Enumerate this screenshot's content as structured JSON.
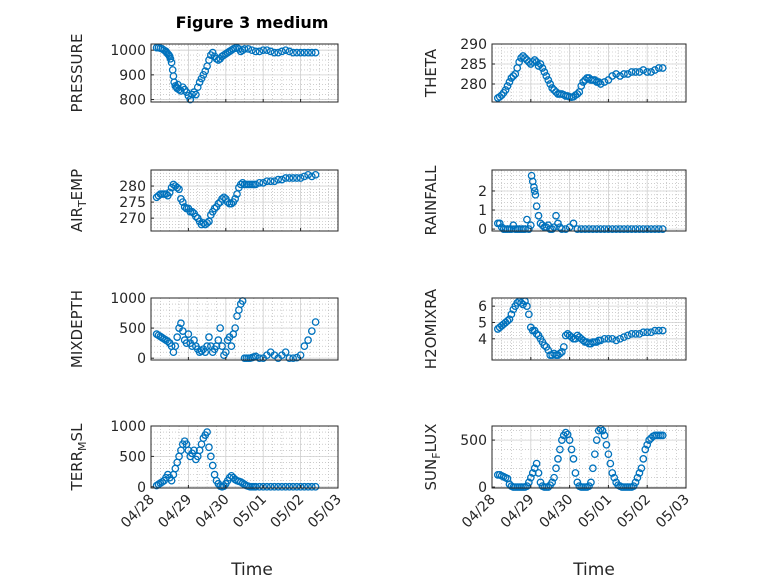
{
  "figure": {
    "title": "Figure 3 medium",
    "marker_color": "#0072BD",
    "axis_color": "#262626",
    "grid_color": "#b0b0b0"
  },
  "chart_data": [
    {
      "type": "scatter",
      "ylabel": "PRESSURE",
      "ylabel_sub": "",
      "ylim": [
        790,
        1025
      ],
      "yticks": [
        800,
        900,
        1000
      ],
      "xlim": [
        0,
        5
      ],
      "xticks": [
        "04/28",
        "04/29",
        "04/30",
        "05/01",
        "05/02",
        "05/03"
      ],
      "grid": true,
      "x": [
        0.15,
        0.2,
        0.25,
        0.3,
        0.35,
        0.4,
        0.42,
        0.45,
        0.48,
        0.5,
        0.52,
        0.55,
        0.58,
        0.6,
        0.62,
        0.65,
        0.68,
        0.7,
        0.72,
        0.75,
        0.8,
        0.85,
        0.9,
        0.95,
        1.0,
        1.05,
        1.1,
        1.15,
        1.2,
        1.25,
        1.3,
        1.35,
        1.4,
        1.45,
        1.5,
        1.55,
        1.6,
        1.65,
        1.7,
        1.75,
        1.8,
        1.85,
        1.9,
        1.95,
        2.0,
        2.05,
        2.1,
        2.15,
        2.2,
        2.25,
        2.3,
        2.35,
        2.4,
        2.45,
        2.5,
        2.6,
        2.7,
        2.8,
        2.9,
        3.0,
        3.1,
        3.2,
        3.3,
        3.4,
        3.5,
        3.6,
        3.7,
        3.8,
        3.9,
        4.0,
        4.1,
        4.2,
        4.3,
        4.4
      ],
      "y": [
        1010,
        1010,
        1008,
        1005,
        1000,
        995,
        990,
        985,
        980,
        975,
        965,
        950,
        920,
        895,
        870,
        855,
        850,
        845,
        860,
        840,
        835,
        850,
        840,
        830,
        815,
        800,
        820,
        830,
        820,
        850,
        870,
        885,
        900,
        915,
        935,
        960,
        980,
        990,
        975,
        965,
        960,
        965,
        975,
        980,
        985,
        990,
        995,
        1000,
        1005,
        1008,
        1010,
        1005,
        995,
        1000,
        1005,
        1005,
        1000,
        995,
        995,
        1000,
        1000,
        995,
        990,
        990,
        995,
        1000,
        995,
        990,
        990,
        990,
        990,
        990,
        990,
        990
      ]
    },
    {
      "type": "scatter",
      "ylabel": "THETA",
      "ylabel_sub": "",
      "ylim": [
        275.5,
        290
      ],
      "yticks": [
        280,
        285,
        290
      ],
      "xlim": [
        0,
        5
      ],
      "xticks": [
        "04/28",
        "04/29",
        "04/30",
        "05/01",
        "05/02",
        "05/03"
      ],
      "grid": true,
      "x": [
        0.15,
        0.2,
        0.25,
        0.3,
        0.35,
        0.4,
        0.45,
        0.5,
        0.55,
        0.6,
        0.65,
        0.7,
        0.75,
        0.8,
        0.85,
        0.9,
        0.95,
        1.0,
        1.05,
        1.1,
        1.15,
        1.2,
        1.25,
        1.3,
        1.35,
        1.4,
        1.45,
        1.5,
        1.55,
        1.6,
        1.65,
        1.7,
        1.75,
        1.8,
        1.85,
        1.9,
        1.95,
        2.0,
        2.05,
        2.1,
        2.15,
        2.2,
        2.25,
        2.3,
        2.35,
        2.4,
        2.45,
        2.5,
        2.55,
        2.6,
        2.65,
        2.7,
        2.75,
        2.8,
        2.9,
        3.0,
        3.1,
        3.2,
        3.3,
        3.4,
        3.5,
        3.6,
        3.7,
        3.8,
        3.9,
        4.0,
        4.1,
        4.2,
        4.3,
        4.4
      ],
      "y": [
        276.5,
        276.8,
        277.2,
        277.8,
        278.5,
        279.5,
        280.5,
        281.5,
        282,
        282.5,
        284,
        285.5,
        286.5,
        287,
        286.5,
        286,
        285.5,
        285,
        285.5,
        286,
        285.5,
        284.5,
        285,
        284,
        283,
        282,
        281,
        280,
        279,
        278.5,
        278,
        277.5,
        277.5,
        277.5,
        277.3,
        277,
        277,
        276.8,
        276.7,
        276.8,
        277.2,
        277.5,
        278,
        279.5,
        280.5,
        281,
        281.5,
        281.5,
        281,
        281,
        281,
        280.5,
        280.5,
        280,
        280.5,
        281,
        282,
        282.5,
        282,
        282.5,
        282.5,
        283,
        283,
        283,
        283.5,
        283,
        283,
        283.5,
        284,
        284
      ]
    },
    {
      "type": "scatter",
      "ylabel": "AIR",
      "ylabel_sub": "T",
      "ylabel_suffix": "EMP",
      "ylim": [
        266,
        285
      ],
      "yticks": [
        270,
        275,
        280
      ],
      "xlim": [
        0,
        5
      ],
      "xticks": [
        "04/28",
        "04/29",
        "04/30",
        "05/01",
        "05/02",
        "05/03"
      ],
      "grid": true,
      "x": [
        0.15,
        0.2,
        0.25,
        0.3,
        0.35,
        0.4,
        0.45,
        0.5,
        0.55,
        0.6,
        0.65,
        0.7,
        0.75,
        0.8,
        0.85,
        0.9,
        0.95,
        1.0,
        1.05,
        1.1,
        1.15,
        1.2,
        1.25,
        1.3,
        1.35,
        1.4,
        1.45,
        1.5,
        1.55,
        1.6,
        1.65,
        1.7,
        1.75,
        1.8,
        1.85,
        1.9,
        1.95,
        2.0,
        2.05,
        2.1,
        2.15,
        2.2,
        2.25,
        2.3,
        2.35,
        2.4,
        2.45,
        2.5,
        2.55,
        2.6,
        2.65,
        2.7,
        2.75,
        2.8,
        2.9,
        3.0,
        3.1,
        3.2,
        3.3,
        3.4,
        3.5,
        3.6,
        3.7,
        3.8,
        3.9,
        4.0,
        4.1,
        4.2,
        4.3,
        4.4
      ],
      "y": [
        276.5,
        277,
        277.5,
        277.5,
        277.5,
        277.5,
        277,
        278,
        279.5,
        280.5,
        280,
        279.5,
        279,
        276,
        275,
        273.5,
        273,
        273,
        272,
        272,
        271.5,
        270.5,
        270,
        269,
        268,
        268.5,
        268,
        268.5,
        269,
        271,
        272,
        273,
        273.5,
        274.5,
        275,
        276,
        276.5,
        276,
        275,
        274.5,
        274.5,
        275,
        276,
        277.5,
        279.5,
        280.5,
        281,
        280.5,
        280.5,
        280.5,
        280.5,
        280.5,
        280.5,
        280.5,
        281,
        281,
        281.5,
        281.5,
        281.5,
        282,
        282,
        282.5,
        282.5,
        282.5,
        282.5,
        282.5,
        283,
        283.5,
        283,
        283.5
      ]
    },
    {
      "type": "scatter",
      "ylabel": "RAINFALL",
      "ylabel_sub": "",
      "ylim": [
        -0.1,
        3.1
      ],
      "yticks": [
        0,
        1,
        2
      ],
      "xlim": [
        0,
        5
      ],
      "xticks": [
        "04/28",
        "04/29",
        "04/30",
        "05/01",
        "05/02",
        "05/03"
      ],
      "grid": true,
      "x": [
        0.15,
        0.2,
        0.25,
        0.3,
        0.35,
        0.4,
        0.45,
        0.5,
        0.55,
        0.6,
        0.65,
        0.7,
        0.75,
        0.8,
        0.85,
        0.9,
        0.95,
        1.0,
        1.02,
        1.05,
        1.08,
        1.1,
        1.12,
        1.15,
        1.2,
        1.25,
        1.3,
        1.35,
        1.4,
        1.45,
        1.5,
        1.55,
        1.6,
        1.65,
        1.7,
        1.75,
        1.8,
        1.9,
        2.0,
        2.1,
        2.2,
        2.3,
        2.4,
        2.5,
        2.6,
        2.7,
        2.8,
        2.9,
        3.0,
        3.1,
        3.2,
        3.3,
        3.4,
        3.5,
        3.6,
        3.7,
        3.8,
        3.9,
        4.0,
        4.1,
        4.2,
        4.3,
        4.4
      ],
      "y": [
        0.3,
        0.3,
        0.1,
        0,
        0,
        0,
        0,
        0,
        0.2,
        0,
        0,
        0,
        0,
        0,
        0,
        0.5,
        0,
        0.2,
        2.8,
        2.5,
        2.2,
        2,
        1.8,
        1.2,
        0.7,
        0.3,
        0.2,
        0.1,
        0.1,
        0.2,
        0,
        0,
        0.1,
        0.7,
        0.3,
        0.1,
        0,
        0,
        0.1,
        0.3,
        0,
        0,
        0,
        0,
        0,
        0,
        0,
        0,
        0,
        0,
        0,
        0,
        0,
        0,
        0,
        0,
        0,
        0,
        0,
        0,
        0,
        0,
        0
      ]
    },
    {
      "type": "scatter",
      "ylabel": "MIXDEPTH",
      "ylabel_sub": "",
      "ylim": [
        -30,
        1000
      ],
      "yticks": [
        0,
        500,
        1000
      ],
      "xlim": [
        0,
        5
      ],
      "xticks": [
        "04/28",
        "04/29",
        "04/30",
        "05/01",
        "05/02",
        "05/03"
      ],
      "grid": true,
      "x": [
        0.15,
        0.2,
        0.25,
        0.3,
        0.35,
        0.4,
        0.45,
        0.5,
        0.55,
        0.6,
        0.65,
        0.7,
        0.75,
        0.8,
        0.85,
        0.9,
        0.95,
        1.0,
        1.05,
        1.1,
        1.15,
        1.2,
        1.25,
        1.3,
        1.35,
        1.4,
        1.45,
        1.5,
        1.55,
        1.6,
        1.65,
        1.7,
        1.75,
        1.8,
        1.85,
        1.9,
        1.95,
        2.0,
        2.05,
        2.1,
        2.15,
        2.2,
        2.25,
        2.3,
        2.35,
        2.4,
        2.45,
        2.5,
        2.55,
        2.6,
        2.65,
        2.7,
        2.75,
        2.8,
        2.9,
        3.0,
        3.1,
        3.2,
        3.3,
        3.4,
        3.5,
        3.6,
        3.7,
        3.8,
        3.9,
        4.0,
        4.1,
        4.2,
        4.3,
        4.4
      ],
      "y": [
        400,
        380,
        360,
        340,
        320,
        300,
        280,
        250,
        200,
        100,
        200,
        350,
        500,
        580,
        450,
        300,
        250,
        400,
        250,
        200,
        300,
        200,
        150,
        100,
        120,
        150,
        100,
        200,
        350,
        200,
        100,
        150,
        200,
        300,
        500,
        200,
        50,
        100,
        300,
        350,
        200,
        400,
        500,
        700,
        800,
        900,
        950,
        0,
        0,
        0,
        0,
        10,
        20,
        30,
        0,
        0,
        50,
        100,
        50,
        0,
        50,
        100,
        0,
        0,
        10,
        50,
        200,
        300,
        450,
        600
      ]
    },
    {
      "type": "scatter",
      "ylabel": "H2OMIXRA",
      "ylabel_sub": "",
      "ylim": [
        2.7,
        6.5
      ],
      "yticks": [
        4,
        5,
        6
      ],
      "xlim": [
        0,
        5
      ],
      "xticks": [
        "04/28",
        "04/29",
        "04/30",
        "05/01",
        "05/02",
        "05/03"
      ],
      "grid": true,
      "x": [
        0.15,
        0.2,
        0.25,
        0.3,
        0.35,
        0.4,
        0.45,
        0.5,
        0.55,
        0.6,
        0.65,
        0.7,
        0.75,
        0.8,
        0.85,
        0.9,
        0.95,
        1.0,
        1.05,
        1.1,
        1.15,
        1.2,
        1.25,
        1.3,
        1.35,
        1.4,
        1.45,
        1.5,
        1.55,
        1.6,
        1.65,
        1.7,
        1.75,
        1.8,
        1.85,
        1.9,
        1.95,
        2.0,
        2.05,
        2.1,
        2.15,
        2.2,
        2.25,
        2.3,
        2.35,
        2.4,
        2.45,
        2.5,
        2.55,
        2.6,
        2.65,
        2.7,
        2.75,
        2.8,
        2.9,
        3.0,
        3.1,
        3.2,
        3.3,
        3.4,
        3.5,
        3.6,
        3.7,
        3.8,
        3.9,
        4.0,
        4.1,
        4.2,
        4.3,
        4.4
      ],
      "y": [
        4.6,
        4.7,
        4.8,
        4.9,
        5,
        5.1,
        5.2,
        5.5,
        5.8,
        6,
        6.2,
        6.3,
        6.2,
        6.1,
        6.3,
        6,
        5.5,
        4.7,
        4.5,
        4.5,
        4.3,
        4.2,
        4,
        3.8,
        3.6,
        3.5,
        3.3,
        3,
        3,
        3.1,
        3,
        3,
        3.1,
        3.2,
        3.5,
        4.2,
        4.3,
        4.2,
        4.1,
        4,
        4,
        4.2,
        4.1,
        4,
        3.9,
        3.8,
        3.8,
        3.7,
        3.7,
        3.8,
        3.8,
        3.8,
        3.9,
        3.9,
        4,
        4,
        4,
        3.9,
        4,
        4.1,
        4.2,
        4.3,
        4.3,
        4.3,
        4.4,
        4.4,
        4.4,
        4.5,
        4.5,
        4.5
      ]
    },
    {
      "type": "scatter",
      "ylabel": "TERR",
      "ylabel_sub": "M",
      "ylabel_suffix": "SL",
      "ylim": [
        -20,
        1000
      ],
      "yticks": [
        0,
        500,
        1000
      ],
      "xlim": [
        0,
        5
      ],
      "xticks": [
        "04/28",
        "04/29",
        "04/30",
        "05/01",
        "05/02",
        "05/03"
      ],
      "grid": true,
      "x": [
        0.15,
        0.2,
        0.25,
        0.3,
        0.35,
        0.4,
        0.45,
        0.5,
        0.55,
        0.6,
        0.65,
        0.7,
        0.75,
        0.8,
        0.85,
        0.9,
        0.95,
        1.0,
        1.05,
        1.1,
        1.15,
        1.2,
        1.25,
        1.3,
        1.35,
        1.4,
        1.45,
        1.5,
        1.55,
        1.6,
        1.65,
        1.7,
        1.75,
        1.8,
        1.85,
        1.9,
        1.95,
        2.0,
        2.05,
        2.1,
        2.15,
        2.2,
        2.25,
        2.3,
        2.35,
        2.4,
        2.45,
        2.5,
        2.55,
        2.6,
        2.65,
        2.7,
        2.75,
        2.8,
        2.9,
        3.0,
        3.1,
        3.2,
        3.3,
        3.4,
        3.5,
        3.6,
        3.7,
        3.8,
        3.9,
        4.0,
        4.1,
        4.2,
        4.3,
        4.4
      ],
      "y": [
        20,
        40,
        60,
        80,
        100,
        150,
        200,
        150,
        100,
        200,
        300,
        400,
        500,
        600,
        700,
        750,
        700,
        600,
        500,
        550,
        600,
        450,
        500,
        600,
        700,
        800,
        850,
        900,
        650,
        500,
        350,
        200,
        100,
        50,
        10,
        0,
        10,
        50,
        100,
        150,
        180,
        150,
        120,
        100,
        90,
        80,
        60,
        40,
        20,
        10,
        0,
        0,
        0,
        0,
        0,
        0,
        0,
        0,
        0,
        0,
        0,
        0,
        0,
        0,
        0,
        0,
        0,
        0,
        0,
        0
      ]
    },
    {
      "type": "scatter",
      "ylabel": "SUN",
      "ylabel_sub": "F",
      "ylabel_suffix": "LUX",
      "ylim": [
        -10,
        650
      ],
      "yticks": [
        0,
        500
      ],
      "xlim": [
        0,
        5
      ],
      "xticks": [
        "04/28",
        "04/29",
        "04/30",
        "05/01",
        "05/02",
        "05/03"
      ],
      "grid": true,
      "x": [
        0.15,
        0.2,
        0.25,
        0.3,
        0.35,
        0.4,
        0.45,
        0.5,
        0.55,
        0.6,
        0.65,
        0.7,
        0.75,
        0.8,
        0.85,
        0.9,
        0.95,
        1.0,
        1.05,
        1.1,
        1.15,
        1.2,
        1.25,
        1.3,
        1.35,
        1.4,
        1.45,
        1.5,
        1.55,
        1.6,
        1.65,
        1.7,
        1.75,
        1.8,
        1.85,
        1.9,
        1.95,
        2.0,
        2.05,
        2.1,
        2.15,
        2.2,
        2.25,
        2.3,
        2.35,
        2.4,
        2.45,
        2.5,
        2.55,
        2.6,
        2.65,
        2.7,
        2.75,
        2.8,
        2.85,
        2.9,
        2.95,
        3.0,
        3.05,
        3.1,
        3.15,
        3.2,
        3.25,
        3.3,
        3.35,
        3.4,
        3.45,
        3.5,
        3.55,
        3.6,
        3.65,
        3.7,
        3.75,
        3.8,
        3.85,
        3.9,
        3.95,
        4.0,
        4.05,
        4.1,
        4.15,
        4.2,
        4.25,
        4.3,
        4.35,
        4.4
      ],
      "y": [
        130,
        130,
        120,
        110,
        100,
        90,
        30,
        10,
        0,
        0,
        0,
        0,
        0,
        0,
        0,
        10,
        50,
        100,
        150,
        200,
        250,
        150,
        50,
        10,
        0,
        0,
        0,
        20,
        50,
        100,
        200,
        300,
        400,
        500,
        550,
        580,
        560,
        500,
        400,
        300,
        150,
        50,
        10,
        0,
        0,
        0,
        0,
        10,
        50,
        200,
        350,
        500,
        600,
        620,
        600,
        550,
        450,
        350,
        250,
        150,
        100,
        50,
        20,
        10,
        0,
        0,
        0,
        0,
        0,
        0,
        10,
        50,
        100,
        150,
        200,
        300,
        400,
        450,
        500,
        520,
        540,
        550,
        550,
        550,
        550,
        550
      ]
    }
  ],
  "shared_xlabel": "Time"
}
